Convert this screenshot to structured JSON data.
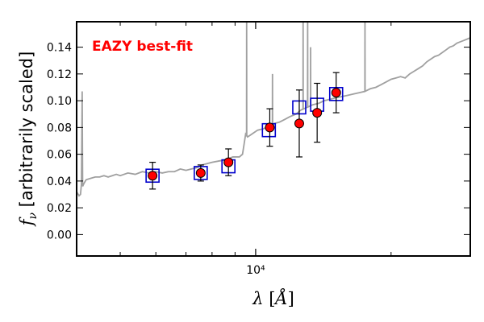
{
  "chart_data": {
    "type": "scatter",
    "annotation": "EAZY best-fit",
    "annotation_color": "#ff0000",
    "x_axis": {
      "label": "λ [Å]",
      "scale": "log",
      "range": [
        4000,
        30000
      ],
      "major_ticks": [
        {
          "value": 10000,
          "label": "10⁴"
        }
      ],
      "minor_ticks": [
        5000,
        6000,
        7000,
        8000,
        9000,
        20000,
        30000
      ]
    },
    "y_axis": {
      "label": "f_ν  [arbitrarily scaled]",
      "range": [
        -0.016,
        0.159
      ],
      "ticks": [
        0.0,
        0.02,
        0.04,
        0.06,
        0.08,
        0.1,
        0.12,
        0.14
      ],
      "tick_labels": [
        "0.00",
        "0.02",
        "0.04",
        "0.06",
        "0.08",
        "0.10",
        "0.12",
        "0.14"
      ]
    },
    "grid": false,
    "series": [
      {
        "role": "template spectrum",
        "style": "line",
        "color": "#a0a0a0",
        "points": [
          [
            4000,
            0.032
          ],
          [
            4050,
            0.029
          ],
          [
            4080,
            0.03
          ],
          [
            4100,
            0.038
          ],
          [
            4115,
            0.107
          ],
          [
            4125,
            0.036
          ],
          [
            4150,
            0.038
          ],
          [
            4200,
            0.041
          ],
          [
            4300,
            0.042
          ],
          [
            4400,
            0.043
          ],
          [
            4500,
            0.043
          ],
          [
            4600,
            0.044
          ],
          [
            4700,
            0.043
          ],
          [
            4800,
            0.044
          ],
          [
            4900,
            0.045
          ],
          [
            5000,
            0.044
          ],
          [
            5200,
            0.046
          ],
          [
            5400,
            0.045
          ],
          [
            5600,
            0.047
          ],
          [
            5800,
            0.046
          ],
          [
            6000,
            0.047
          ],
          [
            6200,
            0.046
          ],
          [
            6400,
            0.047
          ],
          [
            6600,
            0.047
          ],
          [
            6800,
            0.049
          ],
          [
            7000,
            0.048
          ],
          [
            7200,
            0.049
          ],
          [
            7400,
            0.05
          ],
          [
            7600,
            0.052
          ],
          [
            7800,
            0.053
          ],
          [
            8000,
            0.054
          ],
          [
            8300,
            0.055
          ],
          [
            8600,
            0.056
          ],
          [
            8900,
            0.058
          ],
          [
            9200,
            0.058
          ],
          [
            9350,
            0.06
          ],
          [
            9450,
            0.07
          ],
          [
            9500,
            0.075
          ],
          [
            9600,
            0.073
          ],
          [
            9700,
            0.074
          ],
          [
            9900,
            0.076
          ],
          [
            10100,
            0.078
          ],
          [
            10400,
            0.079
          ],
          [
            10700,
            0.081
          ],
          [
            11000,
            0.083
          ],
          [
            11300,
            0.084
          ],
          [
            11600,
            0.086
          ],
          [
            11900,
            0.088
          ],
          [
            12300,
            0.09
          ],
          [
            12600,
            0.093
          ],
          [
            13000,
            0.095
          ],
          [
            13400,
            0.097
          ],
          [
            13800,
            0.098
          ],
          [
            14200,
            0.1
          ],
          [
            14600,
            0.101
          ],
          [
            15000,
            0.102
          ],
          [
            15500,
            0.103
          ],
          [
            16000,
            0.104
          ],
          [
            16500,
            0.105
          ],
          [
            17000,
            0.106
          ],
          [
            17500,
            0.107
          ],
          [
            18000,
            0.109
          ],
          [
            18500,
            0.11
          ],
          [
            19000,
            0.112
          ],
          [
            19500,
            0.114
          ],
          [
            20000,
            0.116
          ],
          [
            20500,
            0.117
          ],
          [
            21000,
            0.118
          ],
          [
            21500,
            0.117
          ],
          [
            22000,
            0.12
          ],
          [
            22500,
            0.122
          ],
          [
            23000,
            0.124
          ],
          [
            23500,
            0.126
          ],
          [
            24000,
            0.129
          ],
          [
            24500,
            0.131
          ],
          [
            25000,
            0.133
          ],
          [
            25500,
            0.134
          ],
          [
            26000,
            0.136
          ],
          [
            26500,
            0.138
          ],
          [
            27000,
            0.14
          ],
          [
            27500,
            0.141
          ],
          [
            28000,
            0.143
          ],
          [
            28500,
            0.144
          ],
          [
            29000,
            0.145
          ],
          [
            29500,
            0.146
          ],
          [
            30000,
            0.147
          ]
        ],
        "emission_lines": [
          {
            "x": 9550,
            "peak": 0.16
          },
          {
            "x": 10900,
            "peak": 0.12
          },
          {
            "x": 12750,
            "peak": 0.16
          },
          {
            "x": 13050,
            "peak": 0.16
          },
          {
            "x": 13250,
            "peak": 0.14
          },
          {
            "x": 17500,
            "peak": 0.16
          }
        ]
      },
      {
        "role": "template band fluxes",
        "style": "open-square",
        "color": "#0000cc",
        "points": [
          {
            "x": 5900,
            "y": 0.044
          },
          {
            "x": 7550,
            "y": 0.046
          },
          {
            "x": 8700,
            "y": 0.051
          },
          {
            "x": 10700,
            "y": 0.078
          },
          {
            "x": 12500,
            "y": 0.095
          },
          {
            "x": 13700,
            "y": 0.097
          },
          {
            "x": 15100,
            "y": 0.105
          }
        ]
      },
      {
        "role": "observed photometry",
        "style": "filled-circle-errorbar",
        "color": "#ff0000",
        "points": [
          {
            "x": 5900,
            "y": 0.044,
            "err": 0.01
          },
          {
            "x": 7550,
            "y": 0.046,
            "err": 0.006
          },
          {
            "x": 8700,
            "y": 0.054,
            "err": 0.01
          },
          {
            "x": 10750,
            "y": 0.08,
            "err": 0.014
          },
          {
            "x": 12500,
            "y": 0.083,
            "err": 0.025
          },
          {
            "x": 13700,
            "y": 0.091,
            "err": 0.022
          },
          {
            "x": 15100,
            "y": 0.106,
            "err": 0.015
          }
        ]
      }
    ]
  }
}
